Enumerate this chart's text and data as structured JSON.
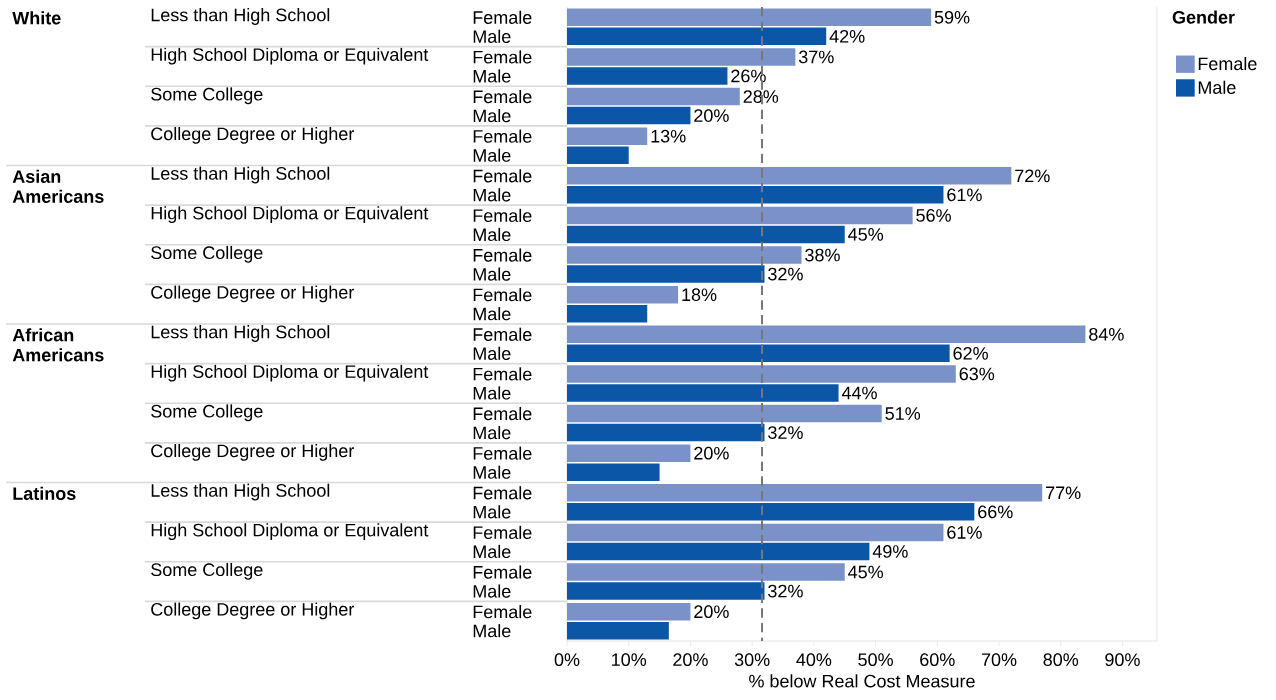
{
  "chart_data": {
    "type": "bar",
    "orientation": "horizontal",
    "xlabel": "% below Real Cost Measure",
    "categories": [
      "Less than High School",
      "High School Diploma or Equivalent",
      "Some College",
      "College Degree or Higher",
      "Less than High School",
      "High School Diploma or Equivalent",
      "Some College",
      "College Degree or Higher",
      "Less than High School",
      "High School Diploma or Equivalent",
      "Some College",
      "College Degree or Higher",
      "Less than High School",
      "High School Diploma or Equivalent",
      "Some College",
      "College Degree or Higher"
    ],
    "annotations": [
      "White",
      "Asian Americans",
      "African Americans",
      "Latinos"
    ],
    "series": [
      {
        "name": "Female",
        "color": "#7b92c9",
        "values": [
          59,
          37,
          28,
          13,
          72,
          56,
          38,
          18,
          84,
          63,
          51,
          20,
          77,
          61,
          45,
          20
        ],
        "value_labels": [
          "59%",
          "37%",
          "28%",
          "13%",
          "72%",
          "56%",
          "38%",
          "18%",
          "84%",
          "63%",
          "51%",
          "20%",
          "77%",
          "61%",
          "45%",
          "20%"
        ]
      },
      {
        "name": "Male",
        "color": "#0b56a6",
        "values": [
          42,
          26,
          20,
          10,
          61,
          45,
          32,
          13,
          62,
          44,
          32,
          15,
          66,
          49,
          32,
          16.5
        ],
        "value_labels": [
          "42%",
          "26%",
          "20%",
          null,
          "61%",
          "45%",
          "32%",
          null,
          "62%",
          "44%",
          "32%",
          null,
          "66%",
          "49%",
          "32%",
          null
        ]
      }
    ],
    "xlim": [
      0,
      95.6
    ],
    "xticks": [
      {
        "value": 0,
        "label": "0%"
      },
      {
        "value": 10,
        "label": "10%"
      },
      {
        "value": 20,
        "label": "20%"
      },
      {
        "value": 30,
        "label": "30%"
      },
      {
        "value": 40,
        "label": "40%"
      },
      {
        "value": 50,
        "label": "50%"
      },
      {
        "value": 60,
        "label": "60%"
      },
      {
        "value": 70,
        "label": "70%"
      },
      {
        "value": 80,
        "label": "80%"
      },
      {
        "value": 90,
        "label": "90%"
      }
    ],
    "ref_lines": [
      {
        "axis": "x",
        "value": 31.6,
        "color": "#777777",
        "line_style": "dashed"
      }
    ],
    "legend": "top right",
    "legend_title": "Gender"
  }
}
